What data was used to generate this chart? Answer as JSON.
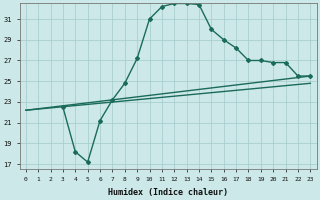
{
  "xlabel": "Humidex (Indice chaleur)",
  "xlim": [
    -0.5,
    23.5
  ],
  "ylim": [
    16.5,
    32.5
  ],
  "yticks": [
    17,
    19,
    21,
    23,
    25,
    27,
    29,
    31
  ],
  "xticks": [
    0,
    1,
    2,
    3,
    4,
    5,
    6,
    7,
    8,
    9,
    10,
    11,
    12,
    13,
    14,
    15,
    16,
    17,
    18,
    19,
    20,
    21,
    22,
    23
  ],
  "bg_color": "#cce8e8",
  "grid_color": "#aacece",
  "line_color": "#1a6b5a",
  "lines": [
    {
      "x": [
        0,
        23
      ],
      "y": [
        22.2,
        25.5
      ],
      "marker": null,
      "lw": 1.0
    },
    {
      "x": [
        0,
        23
      ],
      "y": [
        22.2,
        24.8
      ],
      "marker": null,
      "lw": 1.0
    },
    {
      "x": [
        3,
        4,
        5,
        6,
        7,
        8,
        9,
        10,
        11,
        12,
        13,
        14,
        15,
        16,
        17,
        18,
        19,
        20,
        21,
        22,
        23
      ],
      "y": [
        22.5,
        18.2,
        17.2,
        21.2,
        23.2,
        24.8,
        27.2,
        31.0,
        32.2,
        32.5,
        32.5,
        32.4,
        30.0,
        29.0,
        28.2,
        27.0,
        27.0,
        26.8,
        26.8,
        25.5,
        25.5
      ],
      "marker": "D",
      "markersize": 2.0,
      "lw": 1.0
    }
  ]
}
